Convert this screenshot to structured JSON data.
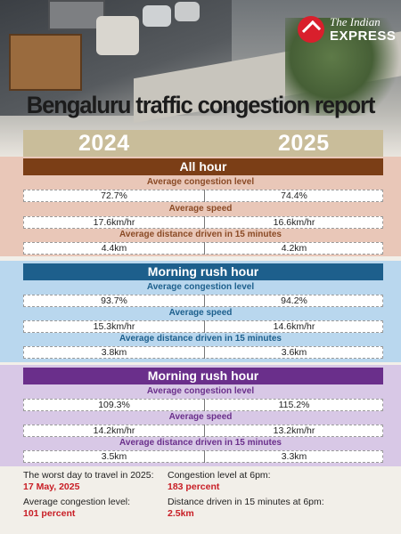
{
  "brand": {
    "line1": "The Indian",
    "line2": "EXPRESS"
  },
  "title": "Bengaluru traffic congestion report",
  "years": [
    "2024",
    "2025"
  ],
  "sections": [
    {
      "heading": "All hour",
      "metrics": [
        {
          "label": "Average congestion level",
          "v2024": "72.7%",
          "v2025": "74.4%"
        },
        {
          "label": "Average speed",
          "v2024": "17.6km/hr",
          "v2025": "16.6km/hr"
        },
        {
          "label": "Average distance driven in 15 minutes",
          "v2024": "4.4km",
          "v2025": "4.2km"
        }
      ]
    },
    {
      "heading": "Morning rush hour",
      "metrics": [
        {
          "label": "Average congestion level",
          "v2024": "93.7%",
          "v2025": "94.2%"
        },
        {
          "label": "Average speed",
          "v2024": "15.3km/hr",
          "v2025": "14.6km/hr"
        },
        {
          "label": "Average distance driven in 15 minutes",
          "v2024": "3.8km",
          "v2025": "3.6km"
        }
      ]
    },
    {
      "heading": "Morning rush hour",
      "metrics": [
        {
          "label": "Average congestion level",
          "v2024": "109.3%",
          "v2025": "115.2%"
        },
        {
          "label": "Average speed",
          "v2024": "14.2km/hr",
          "v2025": "13.2km/hr"
        },
        {
          "label": "Average distance driven in 15 minutes",
          "v2024": "3.5km",
          "v2025": "3.3km"
        }
      ]
    }
  ],
  "footer": {
    "worst_day": {
      "label": "The worst day to travel in 2025:",
      "value": "17 May, 2025"
    },
    "avg_congestion": {
      "label": "Average congestion level:",
      "value": "101 percent"
    },
    "congestion_6pm": {
      "label": "Congestion level at 6pm:",
      "value": "183 percent"
    },
    "distance_6pm": {
      "label": "Distance driven in 15 minutes at 6pm:",
      "value": "2.5km"
    }
  },
  "colors": {
    "all_hour": "#7b3e16",
    "morning_rush": "#1d5f8c",
    "evening_rush": "#6a2f8b",
    "highlight": "#c81d25"
  }
}
